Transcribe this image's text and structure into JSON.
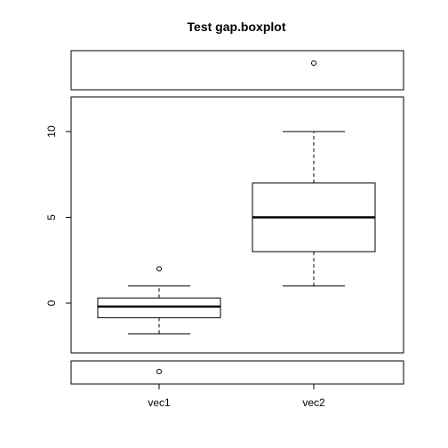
{
  "chart_data": {
    "type": "boxplot",
    "title": "Test gap.boxplot",
    "xlabel": "",
    "ylabel": "",
    "categories": [
      "vec1",
      "vec2"
    ],
    "ylim": [
      -3,
      12
    ],
    "y_ticks": [
      0,
      5,
      10
    ],
    "gaps": [
      {
        "position": "top",
        "contains": [
          14
        ]
      },
      {
        "position": "bottom",
        "contains": [
          -4
        ]
      }
    ],
    "series": [
      {
        "category": "vec1",
        "whisker_low": -1.8,
        "q1": -0.85,
        "median": -0.2,
        "q3": 0.3,
        "whisker_high": 1.0,
        "outliers": [
          2.0,
          -4
        ]
      },
      {
        "category": "vec2",
        "whisker_low": 1.0,
        "q1": 3.0,
        "median": 5.0,
        "q3": 7.0,
        "whisker_high": 10.0,
        "outliers": [
          14
        ]
      }
    ]
  }
}
